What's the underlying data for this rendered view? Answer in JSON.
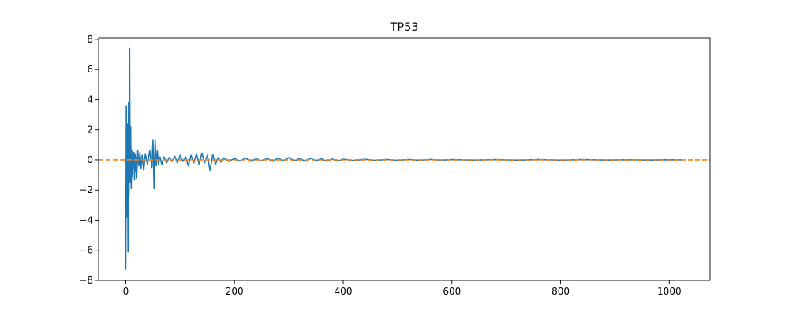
{
  "chart_data": {
    "type": "line",
    "title": "TP53",
    "xlabel": "",
    "ylabel": "",
    "xlim": [
      -50,
      1075
    ],
    "ylim": [
      -8,
      8.1
    ],
    "xticks": [
      0,
      200,
      400,
      600,
      800,
      1000
    ],
    "yticks": [
      -8,
      -6,
      -4,
      -2,
      0,
      2,
      4,
      6,
      8
    ],
    "ytick_labels": [
      "−8",
      "−6",
      "−4",
      "−2",
      "0",
      "2",
      "4",
      "6",
      "8"
    ],
    "grid": false,
    "legend": "none",
    "series_color": "#1f77b4",
    "reference_line": {
      "y": 0,
      "style": "dashed",
      "color": "#ff7f0e"
    },
    "series": [
      {
        "x": [
          0,
          1,
          2,
          3,
          4,
          5,
          6,
          7,
          8,
          9,
          10,
          11,
          12,
          13,
          14,
          15,
          16,
          17,
          18,
          19,
          20,
          22,
          24,
          26,
          28,
          30,
          33,
          36,
          40,
          44,
          48,
          50,
          52,
          54,
          56,
          58,
          60,
          63,
          66,
          70,
          75,
          80,
          85,
          90,
          95,
          100,
          105,
          110,
          115,
          120,
          125,
          130,
          135,
          140,
          145,
          150,
          155,
          160,
          165,
          170,
          175,
          180,
          190,
          200,
          210,
          220,
          230,
          240,
          250,
          260,
          270,
          280,
          290,
          300,
          310,
          320,
          330,
          340,
          350,
          360,
          370,
          380,
          390,
          400,
          420,
          440,
          460,
          480,
          500,
          520,
          540,
          560,
          580,
          600,
          640,
          680,
          720,
          760,
          800,
          840,
          880,
          920,
          960,
          1000,
          1023
        ],
        "y": [
          -7.3,
          3.6,
          -3.8,
          2.4,
          -6.1,
          3.8,
          -2.4,
          7.4,
          -1.5,
          2.2,
          -1.9,
          0.6,
          -1.1,
          0.3,
          -0.6,
          0.5,
          -1.3,
          0.4,
          -0.8,
          0.2,
          -1.2,
          0.6,
          -0.4,
          0.5,
          -0.6,
          0.3,
          -0.7,
          0.4,
          -0.3,
          0.6,
          -0.5,
          1.3,
          -1.9,
          1.3,
          -0.4,
          0.6,
          -0.3,
          0.2,
          -0.3,
          0.2,
          -0.2,
          0.15,
          -0.1,
          0.25,
          -0.2,
          0.3,
          -0.1,
          0.2,
          -0.4,
          0.3,
          -0.2,
          0.4,
          -0.3,
          0.45,
          -0.2,
          0.3,
          -0.7,
          0.35,
          -0.3,
          0.15,
          -0.15,
          0.1,
          -0.1,
          0.1,
          -0.08,
          0.12,
          -0.1,
          0.08,
          -0.08,
          0.1,
          -0.1,
          0.12,
          -0.06,
          0.15,
          -0.08,
          0.1,
          -0.1,
          0.1,
          -0.06,
          0.08,
          -0.1,
          0.06,
          -0.08,
          0.05,
          -0.05,
          0.04,
          -0.04,
          0.03,
          -0.04,
          0.03,
          -0.03,
          0.03,
          -0.02,
          0.02,
          -0.02,
          0.02,
          -0.02,
          0.02,
          -0.02,
          0.02,
          -0.01,
          0.01,
          -0.01,
          0.01,
          0.0
        ]
      }
    ]
  }
}
